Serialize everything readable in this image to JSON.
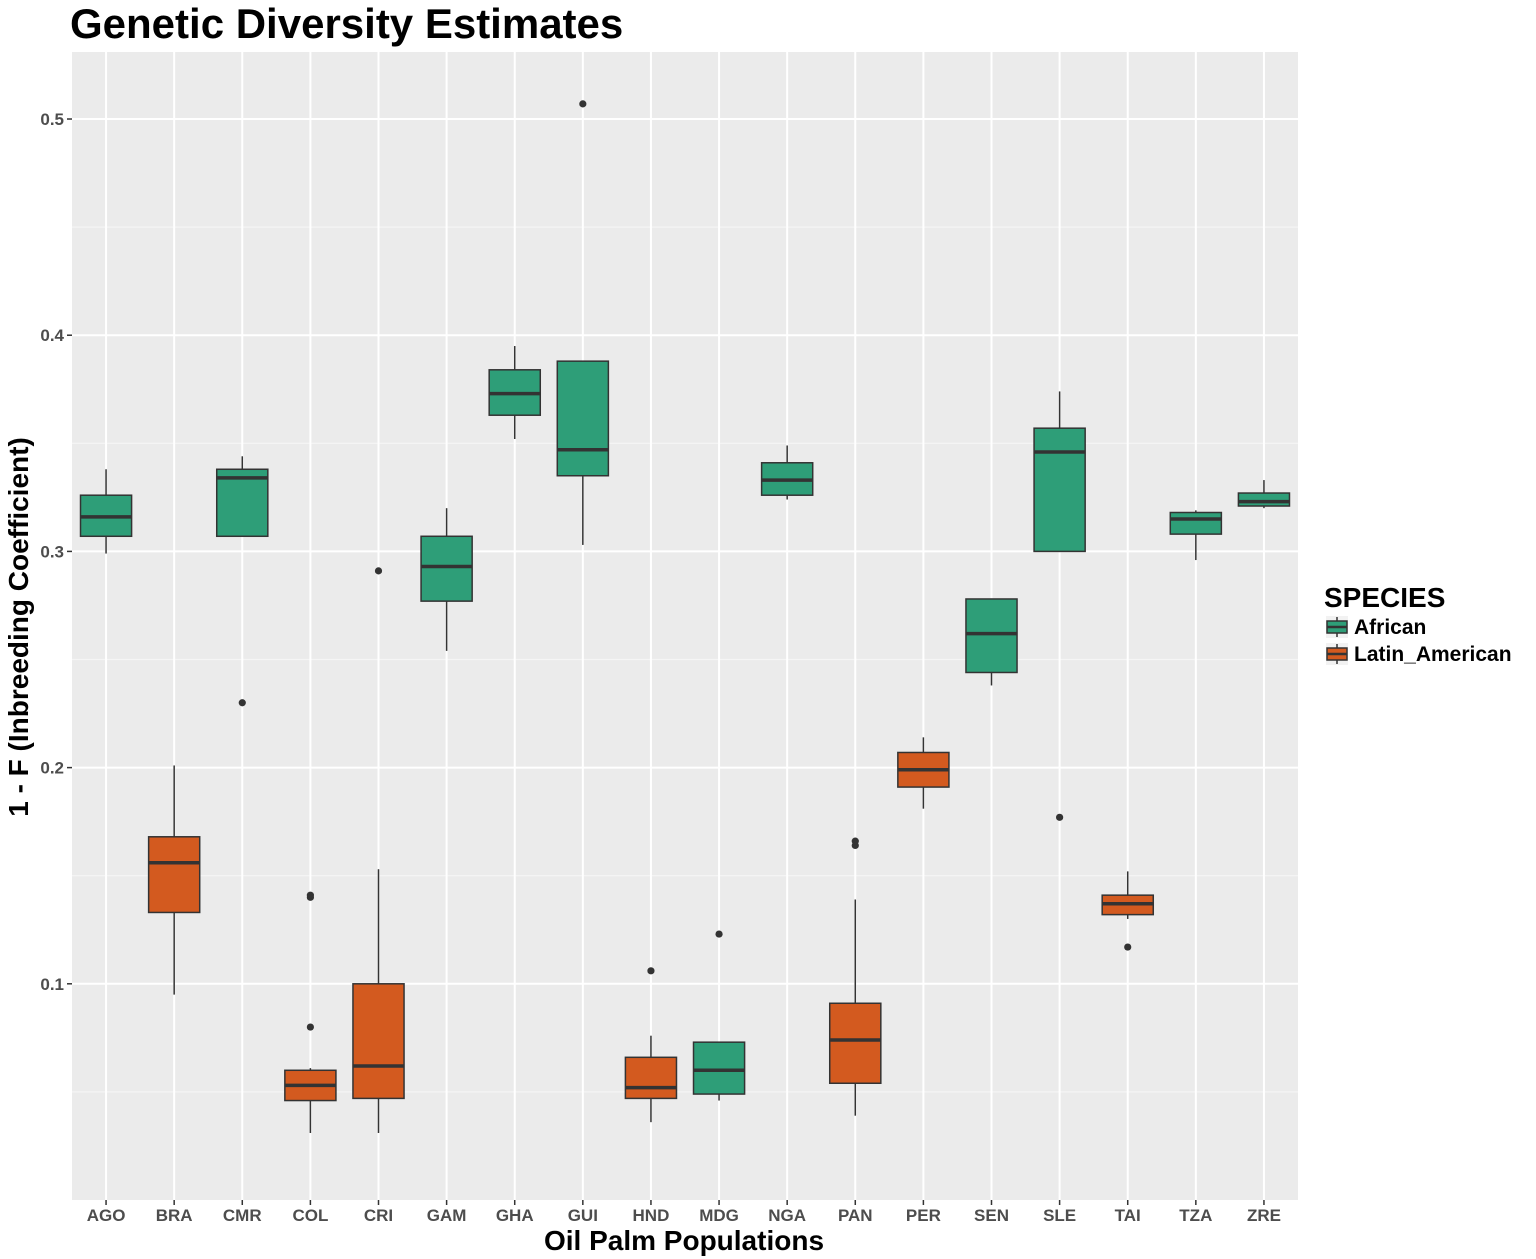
{
  "chart_data": {
    "type": "box",
    "title": "Genetic Diversity Estimates",
    "xlabel": "Oil Palm Populations",
    "ylabel": "1 - F (Inbreeding Coefficient)",
    "yticks": [
      0.1,
      0.2,
      0.3,
      0.4,
      0.5
    ],
    "ytick_labels": [
      "0.1",
      "0.2",
      "0.3",
      "0.4",
      "0.5"
    ],
    "ylim": [
      0.0,
      0.531
    ],
    "grid": true,
    "legend": {
      "title": "SPECIES",
      "position": "right",
      "entries": [
        {
          "name": "African",
          "color": "#2e9e78"
        },
        {
          "name": "Latin_American",
          "color": "#d35a1f"
        }
      ]
    },
    "categories": [
      "AGO",
      "BRA",
      "CMR",
      "COL",
      "CRI",
      "GAM",
      "GHA",
      "GUI",
      "HND",
      "MDG",
      "NGA",
      "PAN",
      "PER",
      "SEN",
      "SLE",
      "TAI",
      "TZA",
      "ZRE"
    ],
    "boxes": [
      {
        "category": "AGO",
        "species": "African",
        "whisker_low": 0.299,
        "q1": 0.307,
        "median": 0.316,
        "q3": 0.326,
        "whisker_high": 0.338,
        "outliers": []
      },
      {
        "category": "BRA",
        "species": "Latin_American",
        "whisker_low": 0.095,
        "q1": 0.133,
        "median": 0.156,
        "q3": 0.168,
        "whisker_high": 0.201,
        "outliers": []
      },
      {
        "category": "CMR",
        "species": "African",
        "whisker_low": 0.307,
        "q1": 0.307,
        "median": 0.334,
        "q3": 0.338,
        "whisker_high": 0.344,
        "outliers": [
          0.23
        ]
      },
      {
        "category": "COL",
        "species": "Latin_American",
        "whisker_low": 0.031,
        "q1": 0.046,
        "median": 0.053,
        "q3": 0.06,
        "whisker_high": 0.061,
        "outliers": [
          0.14,
          0.141,
          0.08
        ]
      },
      {
        "category": "CRI",
        "species": "Latin_American",
        "whisker_low": 0.031,
        "q1": 0.047,
        "median": 0.062,
        "q3": 0.1,
        "whisker_high": 0.153,
        "outliers": [
          0.291
        ]
      },
      {
        "category": "GAM",
        "species": "African",
        "whisker_low": 0.254,
        "q1": 0.277,
        "median": 0.293,
        "q3": 0.307,
        "whisker_high": 0.32,
        "outliers": []
      },
      {
        "category": "GHA",
        "species": "African",
        "whisker_low": 0.352,
        "q1": 0.363,
        "median": 0.373,
        "q3": 0.384,
        "whisker_high": 0.395,
        "outliers": []
      },
      {
        "category": "GUI",
        "species": "African",
        "whisker_low": 0.303,
        "q1": 0.335,
        "median": 0.347,
        "q3": 0.388,
        "whisker_high": 0.388,
        "outliers": [
          0.507
        ]
      },
      {
        "category": "HND",
        "species": "Latin_American",
        "whisker_low": 0.036,
        "q1": 0.047,
        "median": 0.052,
        "q3": 0.066,
        "whisker_high": 0.076,
        "outliers": [
          0.106
        ]
      },
      {
        "category": "MDG",
        "species": "African",
        "whisker_low": 0.046,
        "q1": 0.049,
        "median": 0.06,
        "q3": 0.073,
        "whisker_high": 0.073,
        "outliers": [
          0.123
        ]
      },
      {
        "category": "NGA",
        "species": "African",
        "whisker_low": 0.324,
        "q1": 0.326,
        "median": 0.333,
        "q3": 0.341,
        "whisker_high": 0.349,
        "outliers": []
      },
      {
        "category": "PAN",
        "species": "Latin_American",
        "whisker_low": 0.039,
        "q1": 0.054,
        "median": 0.074,
        "q3": 0.091,
        "whisker_high": 0.139,
        "outliers": [
          0.164,
          0.166
        ]
      },
      {
        "category": "PER",
        "species": "Latin_American",
        "whisker_low": 0.181,
        "q1": 0.191,
        "median": 0.199,
        "q3": 0.207,
        "whisker_high": 0.214,
        "outliers": []
      },
      {
        "category": "SEN",
        "species": "African",
        "whisker_low": 0.238,
        "q1": 0.244,
        "median": 0.262,
        "q3": 0.278,
        "whisker_high": 0.278,
        "outliers": []
      },
      {
        "category": "SLE",
        "species": "African",
        "whisker_low": 0.3,
        "q1": 0.3,
        "median": 0.346,
        "q3": 0.357,
        "whisker_high": 0.374,
        "outliers": [
          0.177
        ]
      },
      {
        "category": "TAI",
        "species": "Latin_American",
        "whisker_low": 0.13,
        "q1": 0.132,
        "median": 0.137,
        "q3": 0.141,
        "whisker_high": 0.152,
        "outliers": [
          0.117
        ]
      },
      {
        "category": "TZA",
        "species": "African",
        "whisker_low": 0.296,
        "q1": 0.308,
        "median": 0.315,
        "q3": 0.318,
        "whisker_high": 0.319,
        "outliers": []
      },
      {
        "category": "ZRE",
        "species": "African",
        "whisker_low": 0.32,
        "q1": 0.321,
        "median": 0.323,
        "q3": 0.327,
        "whisker_high": 0.333,
        "outliers": []
      }
    ]
  }
}
